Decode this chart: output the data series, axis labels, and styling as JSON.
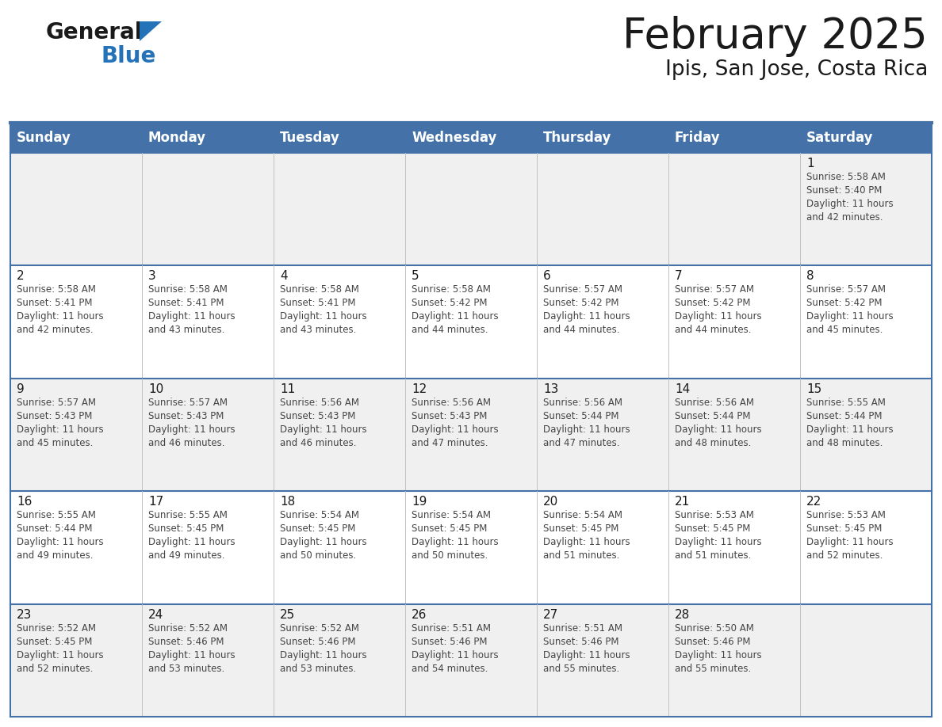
{
  "title": "February 2025",
  "subtitle": "Ipis, San Jose, Costa Rica",
  "days_of_week": [
    "Sunday",
    "Monday",
    "Tuesday",
    "Wednesday",
    "Thursday",
    "Friday",
    "Saturday"
  ],
  "header_bg": "#4472a8",
  "header_text": "#ffffff",
  "cell_bg_odd": "#f0f0f0",
  "cell_bg_even": "#ffffff",
  "border_color": "#4472a8",
  "title_color": "#1a1a1a",
  "subtitle_color": "#1a1a1a",
  "day_num_color": "#1a1a1a",
  "info_color": "#444444",
  "calendar_data": [
    [
      null,
      null,
      null,
      null,
      null,
      null,
      {
        "day": 1,
        "sunrise": "5:58 AM",
        "sunset": "5:40 PM",
        "daylight": "11 hours and 42 minutes"
      }
    ],
    [
      {
        "day": 2,
        "sunrise": "5:58 AM",
        "sunset": "5:41 PM",
        "daylight": "11 hours and 42 minutes"
      },
      {
        "day": 3,
        "sunrise": "5:58 AM",
        "sunset": "5:41 PM",
        "daylight": "11 hours and 43 minutes"
      },
      {
        "day": 4,
        "sunrise": "5:58 AM",
        "sunset": "5:41 PM",
        "daylight": "11 hours and 43 minutes"
      },
      {
        "day": 5,
        "sunrise": "5:58 AM",
        "sunset": "5:42 PM",
        "daylight": "11 hours and 44 minutes"
      },
      {
        "day": 6,
        "sunrise": "5:57 AM",
        "sunset": "5:42 PM",
        "daylight": "11 hours and 44 minutes"
      },
      {
        "day": 7,
        "sunrise": "5:57 AM",
        "sunset": "5:42 PM",
        "daylight": "11 hours and 44 minutes"
      },
      {
        "day": 8,
        "sunrise": "5:57 AM",
        "sunset": "5:42 PM",
        "daylight": "11 hours and 45 minutes"
      }
    ],
    [
      {
        "day": 9,
        "sunrise": "5:57 AM",
        "sunset": "5:43 PM",
        "daylight": "11 hours and 45 minutes"
      },
      {
        "day": 10,
        "sunrise": "5:57 AM",
        "sunset": "5:43 PM",
        "daylight": "11 hours and 46 minutes"
      },
      {
        "day": 11,
        "sunrise": "5:56 AM",
        "sunset": "5:43 PM",
        "daylight": "11 hours and 46 minutes"
      },
      {
        "day": 12,
        "sunrise": "5:56 AM",
        "sunset": "5:43 PM",
        "daylight": "11 hours and 47 minutes"
      },
      {
        "day": 13,
        "sunrise": "5:56 AM",
        "sunset": "5:44 PM",
        "daylight": "11 hours and 47 minutes"
      },
      {
        "day": 14,
        "sunrise": "5:56 AM",
        "sunset": "5:44 PM",
        "daylight": "11 hours and 48 minutes"
      },
      {
        "day": 15,
        "sunrise": "5:55 AM",
        "sunset": "5:44 PM",
        "daylight": "11 hours and 48 minutes"
      }
    ],
    [
      {
        "day": 16,
        "sunrise": "5:55 AM",
        "sunset": "5:44 PM",
        "daylight": "11 hours and 49 minutes"
      },
      {
        "day": 17,
        "sunrise": "5:55 AM",
        "sunset": "5:45 PM",
        "daylight": "11 hours and 49 minutes"
      },
      {
        "day": 18,
        "sunrise": "5:54 AM",
        "sunset": "5:45 PM",
        "daylight": "11 hours and 50 minutes"
      },
      {
        "day": 19,
        "sunrise": "5:54 AM",
        "sunset": "5:45 PM",
        "daylight": "11 hours and 50 minutes"
      },
      {
        "day": 20,
        "sunrise": "5:54 AM",
        "sunset": "5:45 PM",
        "daylight": "11 hours and 51 minutes"
      },
      {
        "day": 21,
        "sunrise": "5:53 AM",
        "sunset": "5:45 PM",
        "daylight": "11 hours and 51 minutes"
      },
      {
        "day": 22,
        "sunrise": "5:53 AM",
        "sunset": "5:45 PM",
        "daylight": "11 hours and 52 minutes"
      }
    ],
    [
      {
        "day": 23,
        "sunrise": "5:52 AM",
        "sunset": "5:45 PM",
        "daylight": "11 hours and 52 minutes"
      },
      {
        "day": 24,
        "sunrise": "5:52 AM",
        "sunset": "5:46 PM",
        "daylight": "11 hours and 53 minutes"
      },
      {
        "day": 25,
        "sunrise": "5:52 AM",
        "sunset": "5:46 PM",
        "daylight": "11 hours and 53 minutes"
      },
      {
        "day": 26,
        "sunrise": "5:51 AM",
        "sunset": "5:46 PM",
        "daylight": "11 hours and 54 minutes"
      },
      {
        "day": 27,
        "sunrise": "5:51 AM",
        "sunset": "5:46 PM",
        "daylight": "11 hours and 55 minutes"
      },
      {
        "day": 28,
        "sunrise": "5:50 AM",
        "sunset": "5:46 PM",
        "daylight": "11 hours and 55 minutes"
      },
      null
    ]
  ],
  "logo_text_general": "General",
  "logo_text_blue": "Blue",
  "logo_color_general": "#1a1a1a",
  "logo_color_blue": "#2472b8",
  "logo_triangle_color": "#2472b8",
  "fig_width": 11.88,
  "fig_height": 9.18,
  "dpi": 100
}
